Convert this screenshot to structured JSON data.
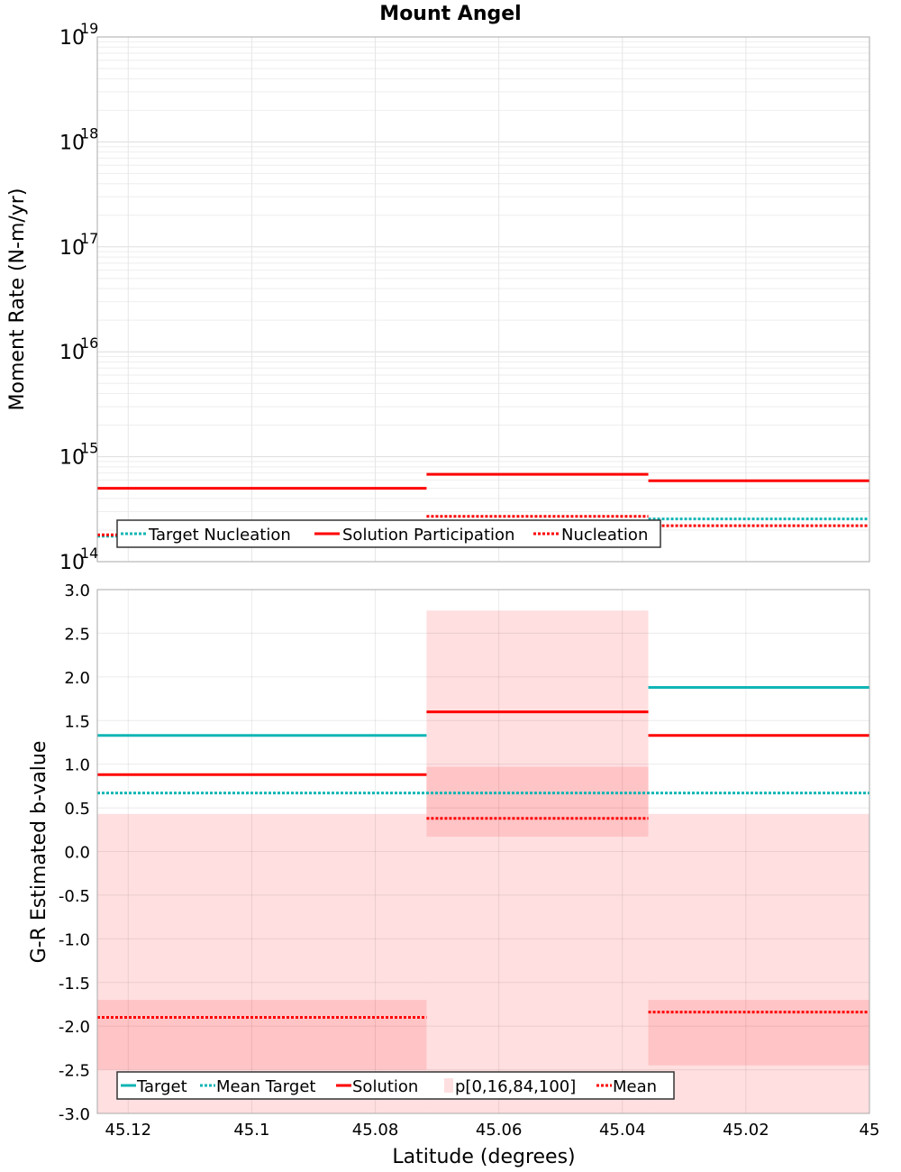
{
  "title": "Mount Angel",
  "xlabel": "Latitude (degrees)",
  "colors": {
    "target": "#10b5b5",
    "solution": "#ff0000",
    "band_outer": "#ffdfe0",
    "band_inner": "#ffc4c6",
    "grid": "#e6e6e6",
    "frame": "#aaaaaa"
  },
  "chart_data": [
    {
      "type": "line",
      "scale": "log",
      "ylabel": "Moment Rate (N-m/yr)",
      "xlim": [
        45.125,
        45.0
      ],
      "x_reversed": true,
      "ylim": [
        100000000000000.0,
        1e+19
      ],
      "ytick_base": "10",
      "yticks": [
        {
          "value": 100000000000000.0,
          "exp": "14"
        },
        {
          "value": 1000000000000000.0,
          "exp": "15"
        },
        {
          "value": 1e+16,
          "exp": "16"
        },
        {
          "value": 1e+17,
          "exp": "17"
        },
        {
          "value": 1e+18,
          "exp": "18"
        },
        {
          "value": 1e+19,
          "exp": "19"
        }
      ],
      "grid": true,
      "legend_position": "bottom-left",
      "legend": [
        {
          "label": "Target Nucleation",
          "style": "dotted",
          "color": "#10b5b5"
        },
        {
          "label": "Solution Participation",
          "style": "solid",
          "color": "#ff0000"
        },
        {
          "label": "Nucleation",
          "style": "dotted",
          "color": "#ff0000"
        }
      ],
      "segments": [
        {
          "series": "Target Nucleation",
          "style": "dotted",
          "color": "#10b5b5",
          "x": [
            45.125,
            45.0717
          ],
          "y": 175000000000000.0
        },
        {
          "series": "Target Nucleation",
          "style": "dotted",
          "color": "#10b5b5",
          "x": [
            45.0717,
            45.0358
          ],
          "y": 200000000000000.0
        },
        {
          "series": "Target Nucleation",
          "style": "dotted",
          "color": "#10b5b5",
          "x": [
            45.0358,
            45.0
          ],
          "y": 255000000000000.0
        },
        {
          "series": "Solution Participation",
          "style": "solid",
          "color": "#ff0000",
          "x": [
            45.125,
            45.0717
          ],
          "y": 500000000000000.0
        },
        {
          "series": "Solution Participation",
          "style": "solid",
          "color": "#ff0000",
          "x": [
            45.0717,
            45.0358
          ],
          "y": 680000000000000.0
        },
        {
          "series": "Solution Participation",
          "style": "solid",
          "color": "#ff0000",
          "x": [
            45.0358,
            45.0
          ],
          "y": 590000000000000.0
        },
        {
          "series": "Nucleation",
          "style": "dotted",
          "color": "#ff0000",
          "x": [
            45.125,
            45.0717
          ],
          "y": 180000000000000.0
        },
        {
          "series": "Nucleation",
          "style": "dotted",
          "color": "#ff0000",
          "x": [
            45.0717,
            45.0358
          ],
          "y": 270000000000000.0
        },
        {
          "series": "Nucleation",
          "style": "dotted",
          "color": "#ff0000",
          "x": [
            45.0358,
            45.0
          ],
          "y": 220000000000000.0
        }
      ]
    },
    {
      "type": "line",
      "ylabel": "G-R Estimated b-value",
      "xlabel": "Latitude (degrees)",
      "xlim": [
        45.125,
        45.0
      ],
      "x_reversed": true,
      "ylim": [
        -3.0,
        3.0
      ],
      "xticks": [
        "45.12",
        "45.1",
        "45.08",
        "45.06",
        "45.04",
        "45.02",
        "45"
      ],
      "xtick_values": [
        45.12,
        45.1,
        45.08,
        45.06,
        45.04,
        45.02,
        45.0
      ],
      "yticks": [
        "3.0",
        "2.5",
        "2.0",
        "1.5",
        "1.0",
        "0.5",
        "0.0",
        "-0.5",
        "-1.0",
        "-1.5",
        "-2.0",
        "-2.5",
        "-3.0"
      ],
      "ytick_values": [
        3.0,
        2.5,
        2.0,
        1.5,
        1.0,
        0.5,
        0.0,
        -0.5,
        -1.0,
        -1.5,
        -2.0,
        -2.5,
        -3.0
      ],
      "grid": true,
      "legend_position": "bottom-left",
      "legend": [
        {
          "label": "Target",
          "style": "solid",
          "color": "#10b5b5"
        },
        {
          "label": "Mean Target",
          "style": "dotted",
          "color": "#10b5b5"
        },
        {
          "label": "Solution",
          "style": "solid",
          "color": "#ff0000"
        },
        {
          "label": "p[0,16,84,100]",
          "style": "box",
          "color": "#ffc4c6"
        },
        {
          "label": "Mean",
          "style": "dotted",
          "color": "#ff0000"
        }
      ],
      "bands": [
        {
          "x": [
            45.125,
            45.0717
          ],
          "p0": -3.0,
          "p16": -2.5,
          "p84": -1.7,
          "p100": 0.43
        },
        {
          "x": [
            45.0717,
            45.0358
          ],
          "p0": -3.0,
          "p16": 0.17,
          "p84": 0.97,
          "p100": 2.76
        },
        {
          "x": [
            45.0358,
            45.0
          ],
          "p0": -3.0,
          "p16": -2.45,
          "p84": -1.7,
          "p100": 0.43
        }
      ],
      "segments": [
        {
          "series": "Target",
          "style": "solid",
          "color": "#10b5b5",
          "x": [
            45.125,
            45.0717
          ],
          "y": 1.33
        },
        {
          "series": "Target",
          "style": "solid",
          "color": "#10b5b5",
          "x": [
            45.0358,
            45.0
          ],
          "y": 1.88
        },
        {
          "series": "Mean Target",
          "style": "dotted",
          "color": "#10b5b5",
          "x": [
            45.125,
            45.0
          ],
          "y": 0.67
        },
        {
          "series": "Solution",
          "style": "solid",
          "color": "#ff0000",
          "x": [
            45.125,
            45.0717
          ],
          "y": 0.88
        },
        {
          "series": "Solution",
          "style": "solid",
          "color": "#ff0000",
          "x": [
            45.0717,
            45.0358
          ],
          "y": 1.6
        },
        {
          "series": "Solution",
          "style": "solid",
          "color": "#ff0000",
          "x": [
            45.0358,
            45.0
          ],
          "y": 1.33
        },
        {
          "series": "Mean",
          "style": "dotted",
          "color": "#ff0000",
          "x": [
            45.125,
            45.0717
          ],
          "y": -1.9
        },
        {
          "series": "Mean",
          "style": "dotted",
          "color": "#ff0000",
          "x": [
            45.0717,
            45.0358
          ],
          "y": 0.38
        },
        {
          "series": "Mean",
          "style": "dotted",
          "color": "#ff0000",
          "x": [
            45.0358,
            45.0
          ],
          "y": -1.84
        }
      ]
    }
  ]
}
